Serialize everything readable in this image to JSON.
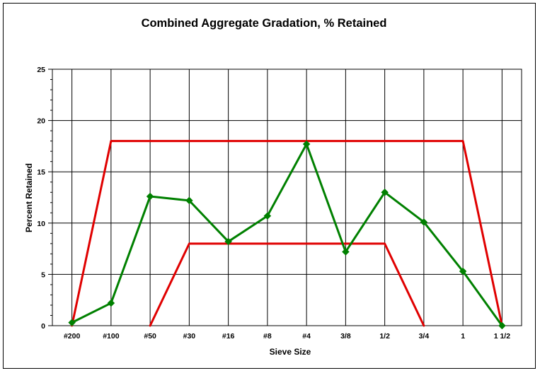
{
  "chart_data": {
    "type": "line",
    "title": "Combined Aggregate Gradation, % Retained",
    "xlabel": "Sieve Size",
    "ylabel": "Percent Retained",
    "categories": [
      "#200",
      "#100",
      "#50",
      "#30",
      "#16",
      "#8",
      "#4",
      "3/8",
      "1/2",
      "3/4",
      "1",
      "1 1/2"
    ],
    "ylim": [
      0,
      25
    ],
    "yticks": [
      0,
      5,
      10,
      15,
      20,
      25
    ],
    "grid": true,
    "legend": "none",
    "series": [
      {
        "color": "#008000",
        "marker": "diamond",
        "points": [
          [
            0,
            0.3
          ],
          [
            1,
            2.2
          ],
          [
            2,
            12.6
          ],
          [
            3,
            12.2
          ],
          [
            4,
            8.2
          ],
          [
            5,
            10.7
          ],
          [
            6,
            17.7
          ],
          [
            7,
            7.2
          ],
          [
            8,
            13.0
          ],
          [
            9,
            10.1
          ],
          [
            10,
            5.3
          ],
          [
            11,
            0.0
          ]
        ]
      },
      {
        "color": "#e00000",
        "marker": "none",
        "points": [
          [
            0,
            0
          ],
          [
            1,
            18
          ],
          [
            10,
            18
          ],
          [
            11,
            0
          ]
        ]
      },
      {
        "color": "#e00000",
        "marker": "none",
        "points": [
          [
            2,
            0
          ],
          [
            3,
            8
          ],
          [
            8,
            8
          ],
          [
            9,
            0
          ]
        ]
      }
    ]
  }
}
